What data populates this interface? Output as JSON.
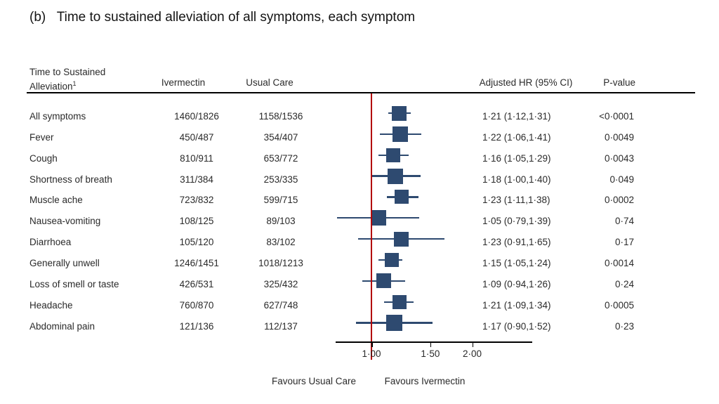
{
  "title": "(b)   Time to sustained alleviation of all symptoms, each symptom",
  "table": {
    "col1_header_line1": "Time to Sustained",
    "col1_header_line2": "Alleviation",
    "col1_header_sup": "1",
    "col2_header": "Ivermectin",
    "col3_header": "Usual Care",
    "col4_header": "Adjusted HR (95% CI)",
    "col5_header": "P-value"
  },
  "footer": {
    "favours_left": "Favours Usual Care",
    "favours_right": "Favours Ivermectin"
  },
  "colors": {
    "marker": "#2e4a70",
    "reference_line": "#b30000",
    "axis": "#000000",
    "text": "#2a2a2a"
  },
  "chart_data": {
    "type": "forest",
    "scale": "log",
    "reference_value": 1.0,
    "x_ticks": [
      1.0,
      1.5,
      2.0
    ],
    "x_tick_labels": [
      "1·00",
      "1·50",
      "2·00"
    ],
    "axis_range_approx": [
      0.78,
      3.0
    ],
    "rows": [
      {
        "label": "All symptoms",
        "ivermectin": "1460/1826",
        "usual_care": "1158/1536",
        "hr": 1.21,
        "lcl": 1.12,
        "ucl": 1.31,
        "hr_text": "1·21 (1·12,1·31)",
        "p_text": "<0·0001",
        "marker_size": 21
      },
      {
        "label": "Fever",
        "ivermectin": "450/487",
        "usual_care": "354/407",
        "hr": 1.22,
        "lcl": 1.06,
        "ucl": 1.41,
        "hr_text": "1·22 (1·06,1·41)",
        "p_text": "0·0049",
        "marker_size": 22
      },
      {
        "label": "Cough",
        "ivermectin": "810/911",
        "usual_care": "653/772",
        "hr": 1.16,
        "lcl": 1.05,
        "ucl": 1.29,
        "hr_text": "1·16 (1·05,1·29)",
        "p_text": "0·0043",
        "marker_size": 20
      },
      {
        "label": "Shortness of breath",
        "ivermectin": "311/384",
        "usual_care": "253/335",
        "hr": 1.18,
        "lcl": 1.0,
        "ucl": 1.4,
        "hr_text": "1·18 (1·00,1·40)",
        "p_text": "0·049",
        "marker_size": 22
      },
      {
        "label": "Muscle ache",
        "ivermectin": "723/832",
        "usual_care": "599/715",
        "hr": 1.23,
        "lcl": 1.11,
        "ucl": 1.38,
        "hr_text": "1·23 (1·11,1·38)",
        "p_text": "0·0002",
        "marker_size": 20
      },
      {
        "label": "Nausea-vomiting",
        "ivermectin": "108/125",
        "usual_care": "89/103",
        "hr": 1.05,
        "lcl": 0.79,
        "ucl": 1.39,
        "hr_text": "1·05 (0·79,1·39)",
        "p_text": "0·74",
        "marker_size": 22
      },
      {
        "label": "Diarrhoea",
        "ivermectin": "105/120",
        "usual_care": "83/102",
        "hr": 1.23,
        "lcl": 0.91,
        "ucl": 1.65,
        "hr_text": "1·23 (0·91,1·65)",
        "p_text": "0·17",
        "marker_size": 21
      },
      {
        "label": "Generally unwell",
        "ivermectin": "1246/1451",
        "usual_care": "1018/1213",
        "hr": 1.15,
        "lcl": 1.05,
        "ucl": 1.24,
        "hr_text": "1·15 (1·05,1·24)",
        "p_text": "0·0014",
        "marker_size": 20
      },
      {
        "label": "Loss of smell or taste",
        "ivermectin": "426/531",
        "usual_care": "325/432",
        "hr": 1.09,
        "lcl": 0.94,
        "ucl": 1.26,
        "hr_text": "1·09 (0·94,1·26)",
        "p_text": "0·24",
        "marker_size": 21
      },
      {
        "label": "Headache",
        "ivermectin": "760/870",
        "usual_care": "627/748",
        "hr": 1.21,
        "lcl": 1.09,
        "ucl": 1.34,
        "hr_text": "1·21 (1·09,1·34)",
        "p_text": "0·0005",
        "marker_size": 20
      },
      {
        "label": "Abdominal pain",
        "ivermectin": "121/136",
        "usual_care": "112/137",
        "hr": 1.17,
        "lcl": 0.9,
        "ucl": 1.52,
        "hr_text": "1·17 (0·90,1·52)",
        "p_text": "0·23",
        "marker_size": 23
      }
    ]
  }
}
